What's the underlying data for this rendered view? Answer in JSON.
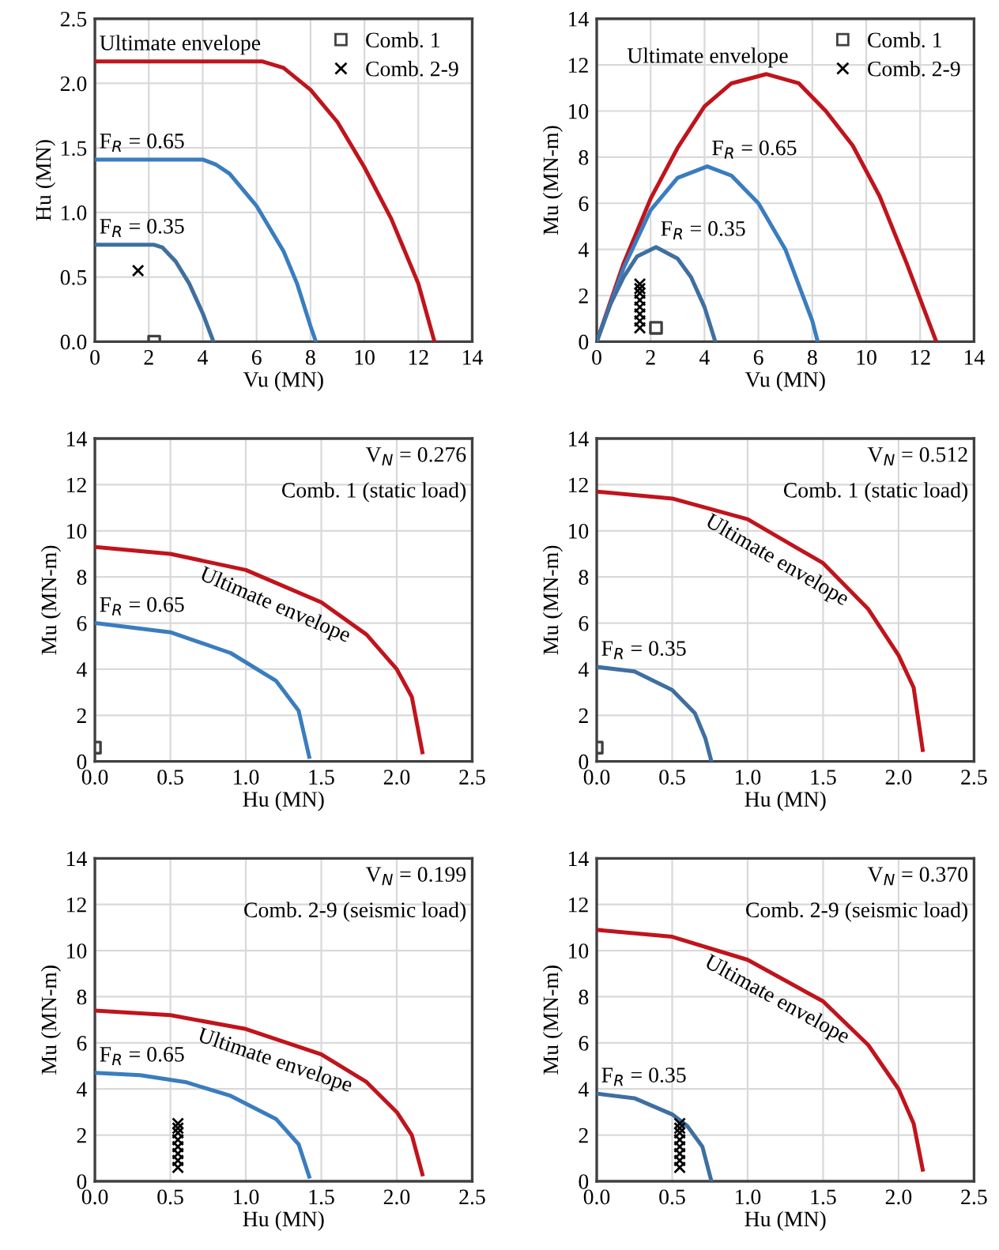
{
  "chart_data": [
    {
      "type": "line",
      "xlabel": "Vu (MN)",
      "ylabel": "Hu (MN)",
      "xlim": [
        0,
        14
      ],
      "ylim": [
        0,
        2.5
      ],
      "xticks": [
        0,
        2,
        4,
        6,
        8,
        10,
        12,
        14
      ],
      "yticks": [
        {
          "value": 0,
          "label": "0.0"
        },
        {
          "value": 0.5,
          "label": "0.5"
        },
        {
          "value": 1,
          "label": "1.0"
        },
        {
          "value": 1.5,
          "label": "1.5"
        },
        {
          "value": 2,
          "label": "2.0"
        },
        {
          "value": 2.5,
          "label": "2.5"
        }
      ],
      "grid": true,
      "legend": "top right",
      "series": [
        {
          "name": "Ultimate envelope",
          "color": "#c0141c",
          "x": [
            0,
            6.2,
            7,
            8,
            9,
            10,
            11,
            12,
            12.6
          ],
          "values": [
            2.17,
            2.17,
            2.12,
            1.95,
            1.7,
            1.35,
            0.95,
            0.45,
            0
          ]
        },
        {
          "name": "F$_{R}$ = 0.65",
          "color": "#3a7dbf",
          "x": [
            0,
            4,
            4.5,
            5,
            6,
            7,
            7.5,
            8,
            8.2
          ],
          "values": [
            1.41,
            1.41,
            1.37,
            1.3,
            1.05,
            0.7,
            0.45,
            0.12,
            0
          ]
        },
        {
          "name": "F$_{R}$ = 0.35",
          "color": "#3f6fa0",
          "x": [
            0,
            2.2,
            2.5,
            3,
            3.5,
            4,
            4.4
          ],
          "values": [
            0.75,
            0.75,
            0.73,
            0.62,
            0.45,
            0.22,
            0
          ]
        },
        {
          "type": "scatter",
          "name": "Comb. 1",
          "marker": "square",
          "color": "#404040",
          "x": [
            2.2
          ],
          "values": [
            0
          ]
        },
        {
          "type": "scatter",
          "name": "Comb. 2-9",
          "marker": "cross",
          "color": "#000000",
          "x": [
            1.6
          ],
          "values": [
            0.55
          ]
        }
      ]
    },
    {
      "type": "line",
      "xlabel": "Vu (MN)",
      "ylabel": "Mu (MN-m)",
      "xlim": [
        0,
        14
      ],
      "ylim": [
        0,
        14
      ],
      "xticks": [
        0,
        2,
        4,
        6,
        8,
        10,
        12,
        14
      ],
      "yticks": [
        0,
        2,
        4,
        6,
        8,
        10,
        12,
        14
      ],
      "grid": true,
      "legend": "top right",
      "series": [
        {
          "name": "Ultimate envelope",
          "color": "#c0141c",
          "x": [
            0,
            1,
            2,
            3,
            4,
            5,
            6.3,
            7.5,
            8.5,
            9.5,
            10.5,
            11.5,
            12.6
          ],
          "values": [
            0,
            3.4,
            6.2,
            8.4,
            10.2,
            11.2,
            11.6,
            11.2,
            10.0,
            8.5,
            6.3,
            3.4,
            0
          ]
        },
        {
          "name": "F$_{R}$ = 0.65",
          "color": "#3a7dbf",
          "x": [
            0,
            1,
            2,
            3,
            4.1,
            5,
            6,
            7,
            8,
            8.2
          ],
          "values": [
            0,
            3.2,
            5.7,
            7.1,
            7.6,
            7.2,
            6.0,
            4.0,
            0.9,
            0
          ]
        },
        {
          "name": "F$_{R}$ = 0.35",
          "color": "#3f6fa0",
          "x": [
            0,
            0.5,
            1,
            1.5,
            2.2,
            3,
            3.5,
            4,
            4.4
          ],
          "values": [
            0,
            1.6,
            2.8,
            3.7,
            4.1,
            3.6,
            2.8,
            1.5,
            0
          ]
        },
        {
          "type": "scatter",
          "name": "Comb. 1",
          "marker": "square",
          "color": "#404040",
          "x": [
            2.2
          ],
          "values": [
            0.6
          ]
        },
        {
          "type": "scatter",
          "name": "Comb. 2-9",
          "marker": "cross",
          "color": "#000000",
          "x": [
            1.6,
            1.6,
            1.6,
            1.6,
            1.6,
            1.6,
            1.6,
            1.6
          ],
          "values": [
            0.6,
            0.9,
            1.2,
            1.5,
            1.8,
            2.1,
            2.3,
            2.5
          ]
        }
      ]
    },
    {
      "type": "line",
      "xlabel": "Hu (MN)",
      "ylabel": "Mu (MN-m)",
      "xlim": [
        0,
        2.5
      ],
      "ylim": [
        0,
        14
      ],
      "xticks": [
        {
          "value": 0,
          "label": "0.0"
        },
        0.5,
        {
          "value": 1,
          "label": "1.0"
        },
        1.5,
        {
          "value": 2,
          "label": "2.0"
        },
        2.5
      ],
      "yticks": [
        0,
        2,
        4,
        6,
        8,
        10,
        12,
        14
      ],
      "grid": true,
      "annotations": [
        "V$_{N}$ = 0.276",
        "Comb. 1 (static load)"
      ],
      "series": [
        {
          "name": "Ultimate envelope",
          "color": "#c0141c",
          "x": [
            0,
            0.5,
            1.0,
            1.5,
            1.8,
            2.0,
            2.1,
            2.17
          ],
          "values": [
            9.3,
            9.0,
            8.3,
            6.9,
            5.5,
            4.0,
            2.8,
            0.4
          ]
        },
        {
          "name": "F$_{R}$ = 0.65",
          "color": "#3a7dbf",
          "x": [
            0,
            0.5,
            0.9,
            1.2,
            1.35,
            1.42
          ],
          "values": [
            6.0,
            5.6,
            4.7,
            3.5,
            2.2,
            0.2
          ]
        },
        {
          "type": "scatter",
          "marker": "square",
          "color": "#404040",
          "x": [
            0
          ],
          "values": [
            0.6
          ]
        }
      ]
    },
    {
      "type": "line",
      "xlabel": "Hu (MN)",
      "ylabel": "Mu (MN-m)",
      "xlim": [
        0,
        2.5
      ],
      "ylim": [
        0,
        14
      ],
      "xticks": [
        {
          "value": 0,
          "label": "0.0"
        },
        0.5,
        {
          "value": 1,
          "label": "1.0"
        },
        1.5,
        {
          "value": 2,
          "label": "2.0"
        },
        2.5
      ],
      "yticks": [
        0,
        2,
        4,
        6,
        8,
        10,
        12,
        14
      ],
      "grid": true,
      "annotations": [
        "V$_{N}$ = 0.512",
        "Comb. 1 (static load)"
      ],
      "series": [
        {
          "name": "Ultimate envelope",
          "color": "#c0141c",
          "x": [
            0,
            0.5,
            1,
            1.5,
            1.8,
            2.0,
            2.1,
            2.16
          ],
          "values": [
            11.7,
            11.4,
            10.5,
            8.6,
            6.6,
            4.6,
            3.2,
            0.5
          ]
        },
        {
          "name": "F$_{R}$ = 0.35",
          "color": "#3f6fa0",
          "x": [
            0,
            0.25,
            0.5,
            0.65,
            0.72,
            0.76
          ],
          "values": [
            4.1,
            3.9,
            3.1,
            2.1,
            1.0,
            0
          ]
        },
        {
          "type": "scatter",
          "marker": "square",
          "color": "#404040",
          "x": [
            0
          ],
          "values": [
            0.6
          ]
        }
      ]
    },
    {
      "type": "line",
      "xlabel": "Hu (MN)",
      "ylabel": "Mu (MN-m)",
      "xlim": [
        0,
        2.5
      ],
      "ylim": [
        0,
        14
      ],
      "xticks": [
        {
          "value": 0,
          "label": "0.0"
        },
        0.5,
        {
          "value": 1,
          "label": "1.0"
        },
        1.5,
        {
          "value": 2,
          "label": "2.0"
        },
        2.5
      ],
      "yticks": [
        0,
        2,
        4,
        6,
        8,
        10,
        12,
        14
      ],
      "grid": true,
      "annotations": [
        "V$_{N}$ = 0.199",
        "Comb. 2-9 (seismic load)"
      ],
      "series": [
        {
          "name": "Ultimate envelope",
          "color": "#c0141c",
          "x": [
            0,
            0.5,
            1,
            1.5,
            1.8,
            2.0,
            2.1,
            2.17
          ],
          "values": [
            7.4,
            7.2,
            6.6,
            5.5,
            4.3,
            3.0,
            2.0,
            0.3
          ]
        },
        {
          "name": "F$_{R}$ = 0.65",
          "color": "#3a7dbf",
          "x": [
            0,
            0.3,
            0.6,
            0.9,
            1.2,
            1.35,
            1.42
          ],
          "values": [
            4.7,
            4.6,
            4.3,
            3.7,
            2.7,
            1.6,
            0.2
          ]
        },
        {
          "type": "scatter",
          "marker": "cross",
          "color": "#000000",
          "x": [
            0.55,
            0.55,
            0.55,
            0.55,
            0.55,
            0.55,
            0.55,
            0.55
          ],
          "values": [
            0.6,
            0.9,
            1.2,
            1.5,
            1.8,
            2.1,
            2.3,
            2.5
          ]
        }
      ]
    },
    {
      "type": "line",
      "xlabel": "Hu (MN)",
      "ylabel": "Mu (MN-m)",
      "xlim": [
        0,
        2.5
      ],
      "ylim": [
        0,
        14
      ],
      "xticks": [
        {
          "value": 0,
          "label": "0.0"
        },
        0.5,
        {
          "value": 1,
          "label": "1.0"
        },
        1.5,
        {
          "value": 2,
          "label": "2.0"
        },
        2.5
      ],
      "yticks": [
        0,
        2,
        4,
        6,
        8,
        10,
        12,
        14
      ],
      "grid": true,
      "annotations": [
        "V$_{N}$ = 0.370",
        "Comb. 2-9 (seismic load)"
      ],
      "series": [
        {
          "name": "Ultimate envelope",
          "color": "#c0141c",
          "x": [
            0,
            0.5,
            1,
            1.5,
            1.8,
            2.0,
            2.1,
            2.16
          ],
          "values": [
            10.9,
            10.6,
            9.6,
            7.8,
            5.9,
            4.0,
            2.5,
            0.5
          ]
        },
        {
          "name": "F$_{R}$ = 0.35",
          "color": "#3f6fa0",
          "x": [
            0,
            0.25,
            0.5,
            0.6,
            0.7,
            0.76
          ],
          "values": [
            3.8,
            3.6,
            2.9,
            2.4,
            1.5,
            0
          ]
        },
        {
          "type": "scatter",
          "marker": "cross",
          "color": "#000000",
          "x": [
            0.55,
            0.55,
            0.55,
            0.55,
            0.55,
            0.55,
            0.55,
            0.55
          ],
          "values": [
            0.6,
            0.9,
            1.2,
            1.5,
            1.8,
            2.1,
            2.3,
            2.5
          ]
        }
      ]
    }
  ]
}
